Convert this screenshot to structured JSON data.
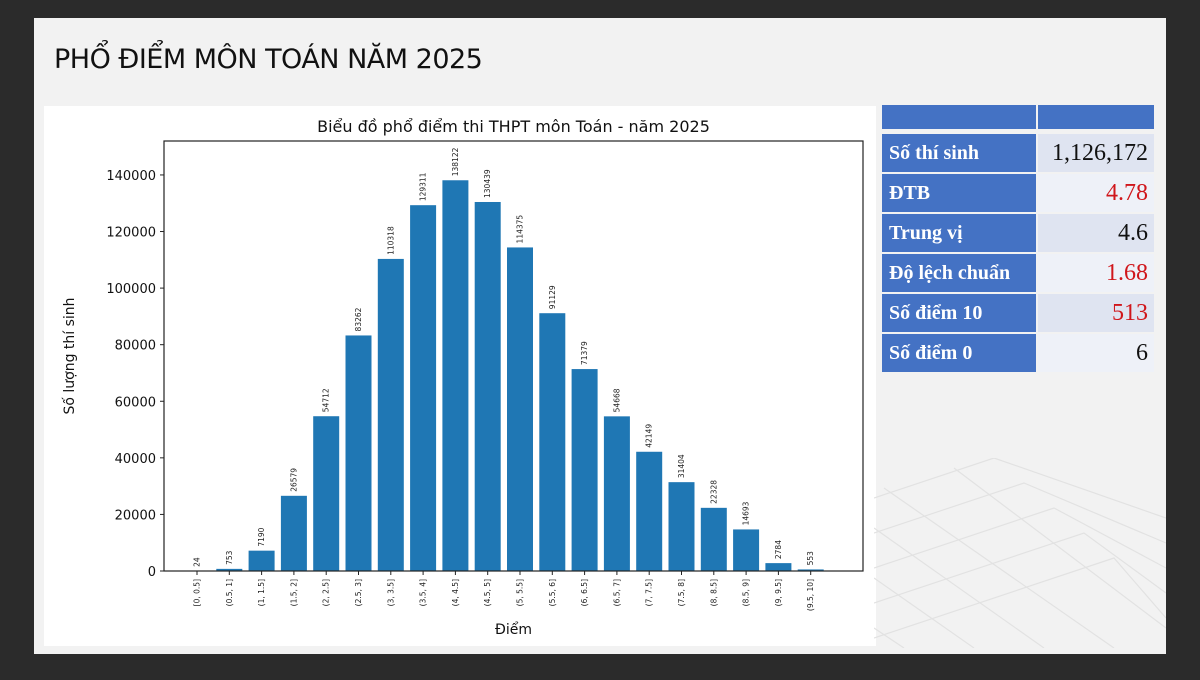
{
  "slide": {
    "title": "PHỔ ĐIỂM MÔN TOÁN NĂM 2025"
  },
  "stats_table": {
    "header": [
      "",
      ""
    ],
    "rows": [
      {
        "label": "Số thí sinh",
        "value": "1,126,172",
        "highlight": false
      },
      {
        "label": "ĐTB",
        "value": "4.78",
        "highlight": true
      },
      {
        "label": "Trung vị",
        "value": "4.6",
        "highlight": false
      },
      {
        "label": "Độ lệch chuẩn",
        "value": "1.68",
        "highlight": true
      },
      {
        "label": "Số điểm 10",
        "value": "513",
        "highlight": true
      },
      {
        "label": "Số điểm 0",
        "value": "6",
        "highlight": false
      }
    ],
    "colors": {
      "label_bg": "#4472c4",
      "value_bg": "#dfe4f1",
      "highlight_text": "#d0161b"
    }
  },
  "chart_data": {
    "type": "bar",
    "title": "Biểu đồ phổ điểm thi THPT môn Toán - năm 2025",
    "xlabel": "Điểm",
    "ylabel": "Số lượng thí sinh",
    "categories": [
      "[0, 0.5]",
      "(0.5, 1]",
      "(1, 1.5]",
      "(1.5, 2]",
      "(2, 2.5]",
      "(2.5, 3]",
      "(3, 3.5]",
      "(3.5, 4]",
      "(4, 4.5]",
      "(4.5, 5]",
      "(5, 5.5]",
      "(5.5, 6]",
      "(6, 6.5]",
      "(6.5, 7]",
      "(7, 7.5]",
      "(7.5, 8]",
      "(8, 8.5]",
      "(8.5, 9]",
      "(9, 9.5]",
      "(9.5, 10]"
    ],
    "values": [
      24,
      753,
      7190,
      26579,
      54712,
      83262,
      110318,
      129311,
      138122,
      130439,
      114375,
      91129,
      71379,
      54668,
      42149,
      31404,
      22328,
      14693,
      2784,
      553
    ],
    "yticks": [
      0,
      20000,
      40000,
      60000,
      80000,
      100000,
      120000,
      140000
    ],
    "ylim": [
      0,
      152000
    ],
    "grid": false,
    "bar_color": "#1f77b4",
    "data_labels": true
  }
}
